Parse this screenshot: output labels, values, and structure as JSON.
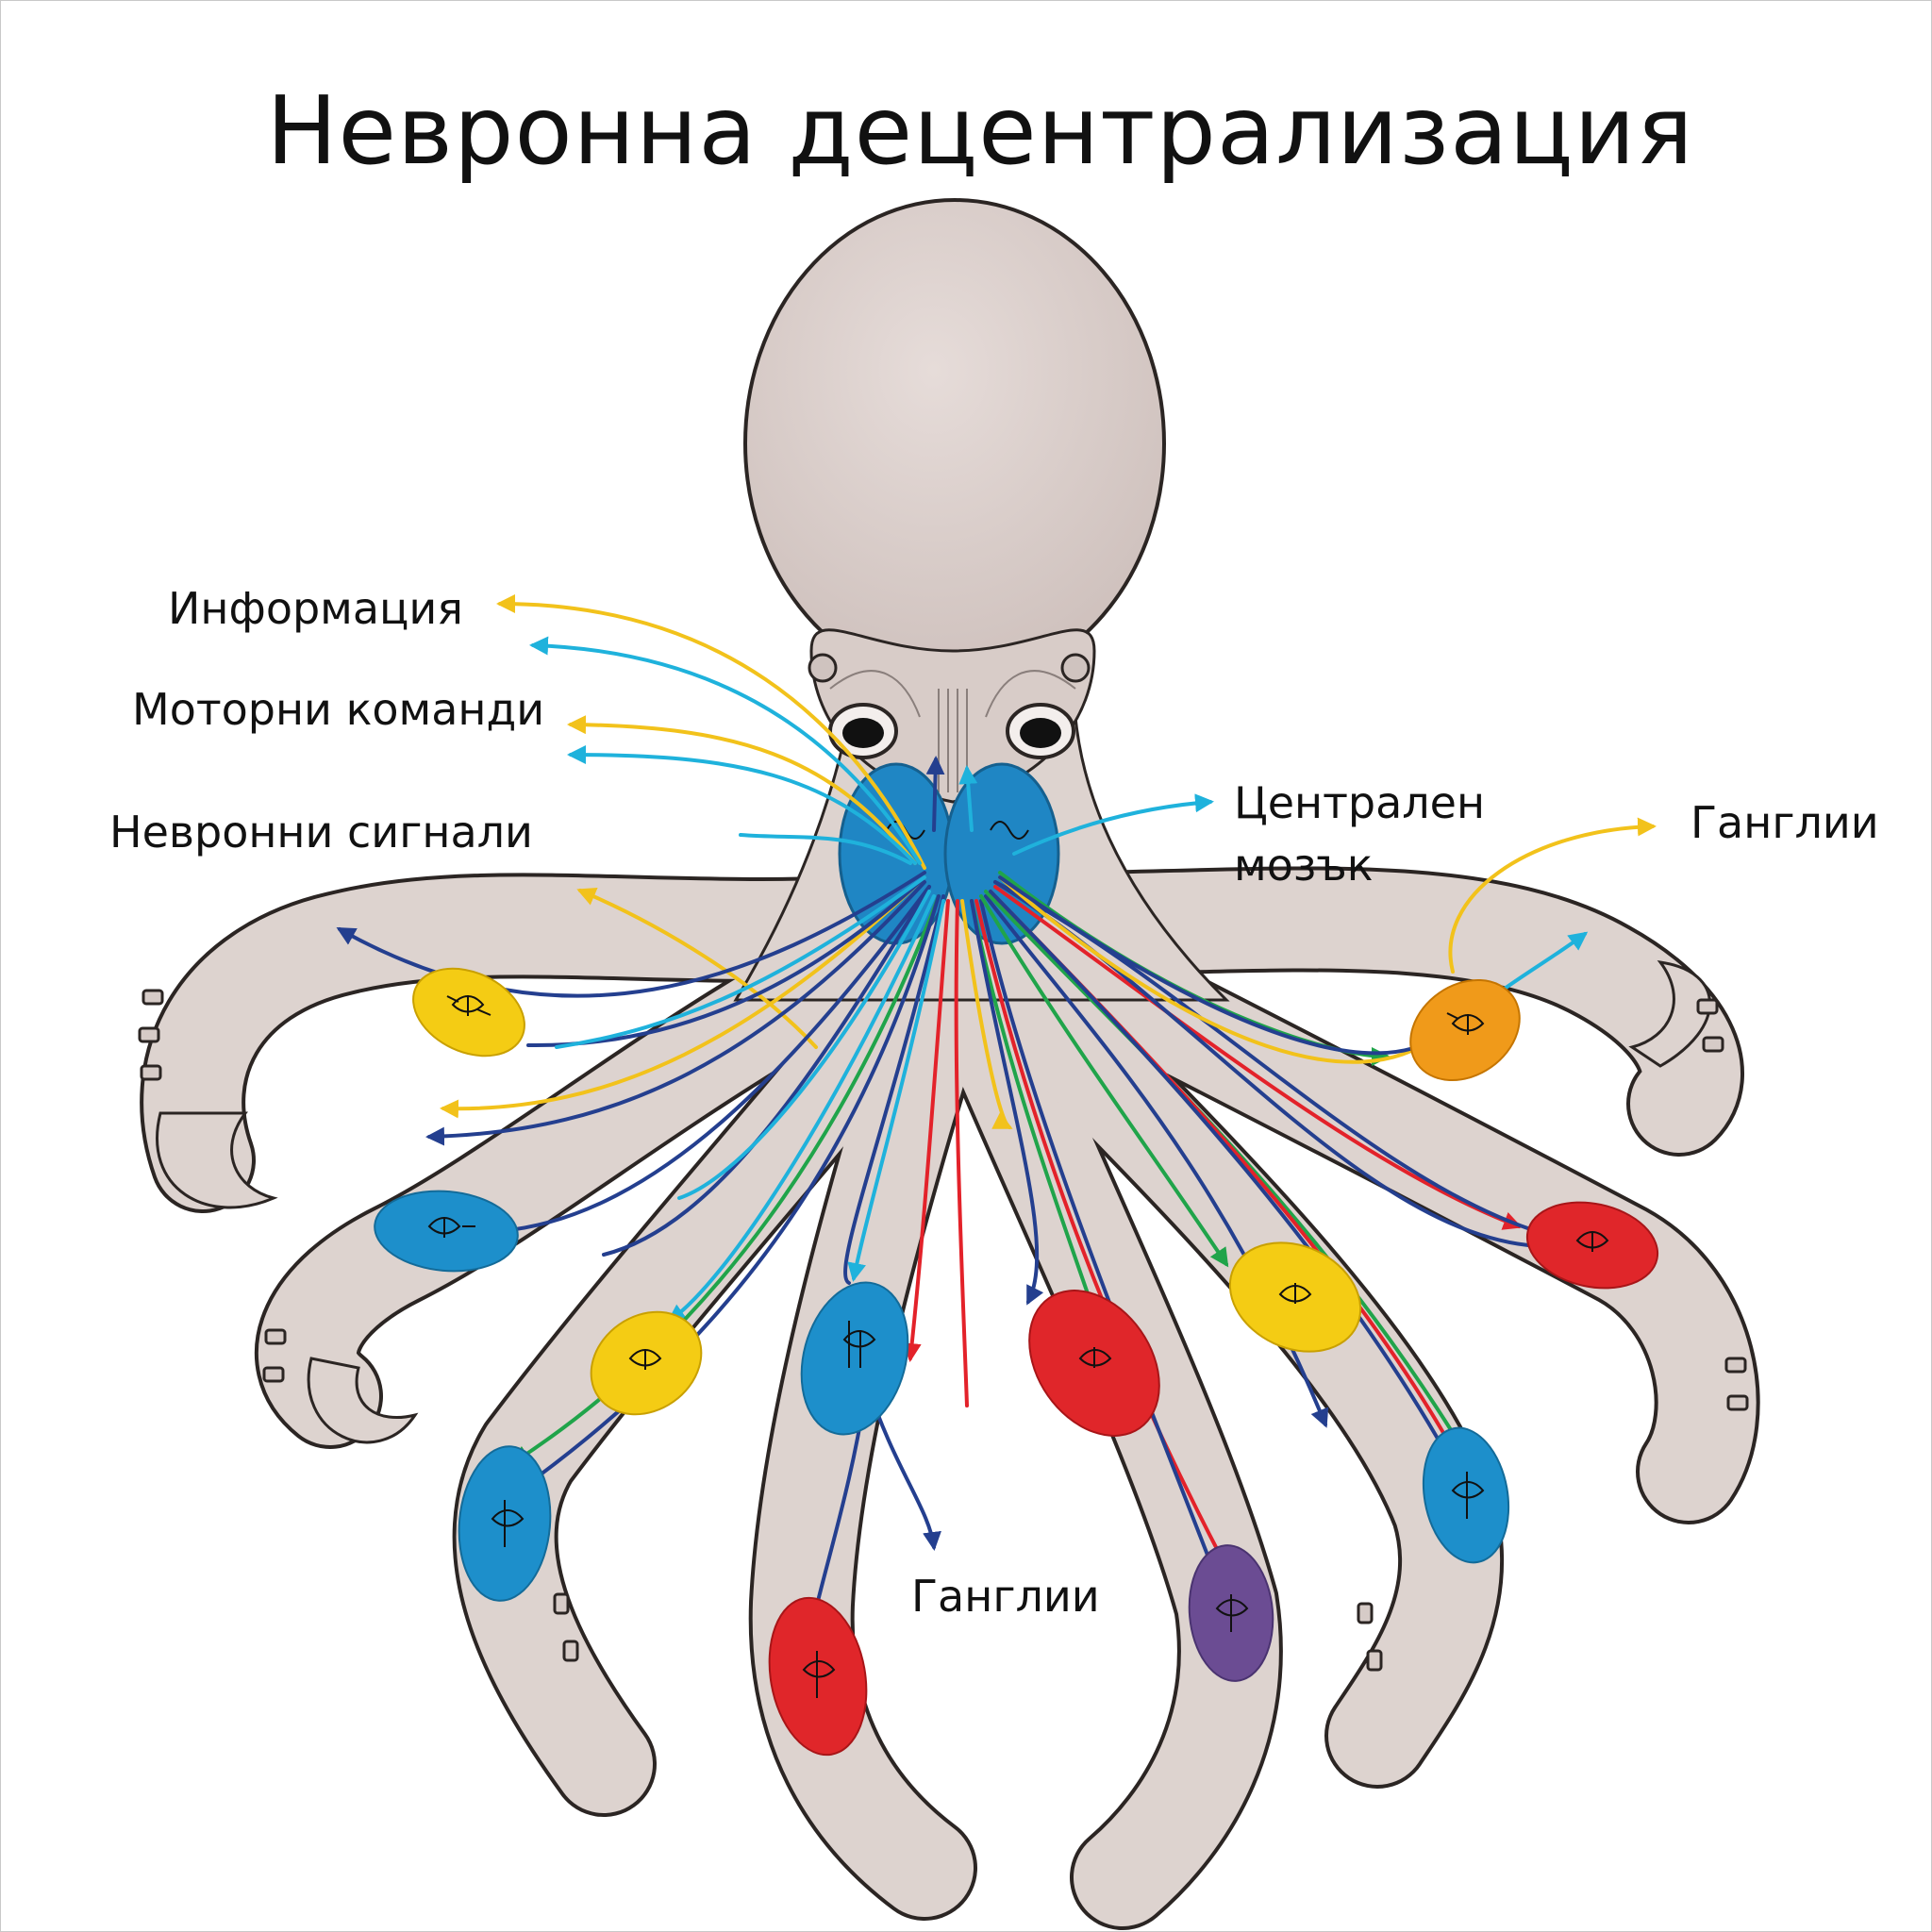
{
  "title": "Невронна децентрализация",
  "labels": {
    "information": "Информация",
    "motor_commands": "Моторни команди",
    "neural_signals": "Невронни сигнали",
    "central_brain_line1": "Централен",
    "central_brain_line2": "мозък",
    "ganglia_right": "Ганглии",
    "ganglia_bottom": "Ганглии"
  },
  "colors": {
    "body": "#ddd3cf",
    "outline": "#2b2523",
    "brain": "#1f86c4",
    "signal_yellow": "#f2c21b",
    "signal_cyan": "#1fb2dc",
    "signal_navy": "#243f8f",
    "signal_green": "#20a44a",
    "signal_red": "#e3222a",
    "ganglion_yellow": "#f4cc14",
    "ganglion_blue": "#1d8fcb",
    "ganglion_orange": "#f09a1a",
    "ganglion_red": "#e0262a",
    "ganglion_purple": "#6b4c93"
  },
  "ganglia": [
    {
      "id": "left-upper",
      "color": "yellow"
    },
    {
      "id": "upper-right",
      "color": "orange"
    },
    {
      "id": "left-middle",
      "color": "blue"
    },
    {
      "id": "right-middle",
      "color": "red"
    },
    {
      "id": "center-left",
      "color": "yellow"
    },
    {
      "id": "center",
      "color": "blue"
    },
    {
      "id": "center-right",
      "color": "red"
    },
    {
      "id": "right-center",
      "color": "yellow"
    },
    {
      "id": "left-lower",
      "color": "blue"
    },
    {
      "id": "right-lower",
      "color": "blue"
    },
    {
      "id": "bottom-left",
      "color": "red"
    },
    {
      "id": "bottom-right",
      "color": "purple"
    }
  ]
}
